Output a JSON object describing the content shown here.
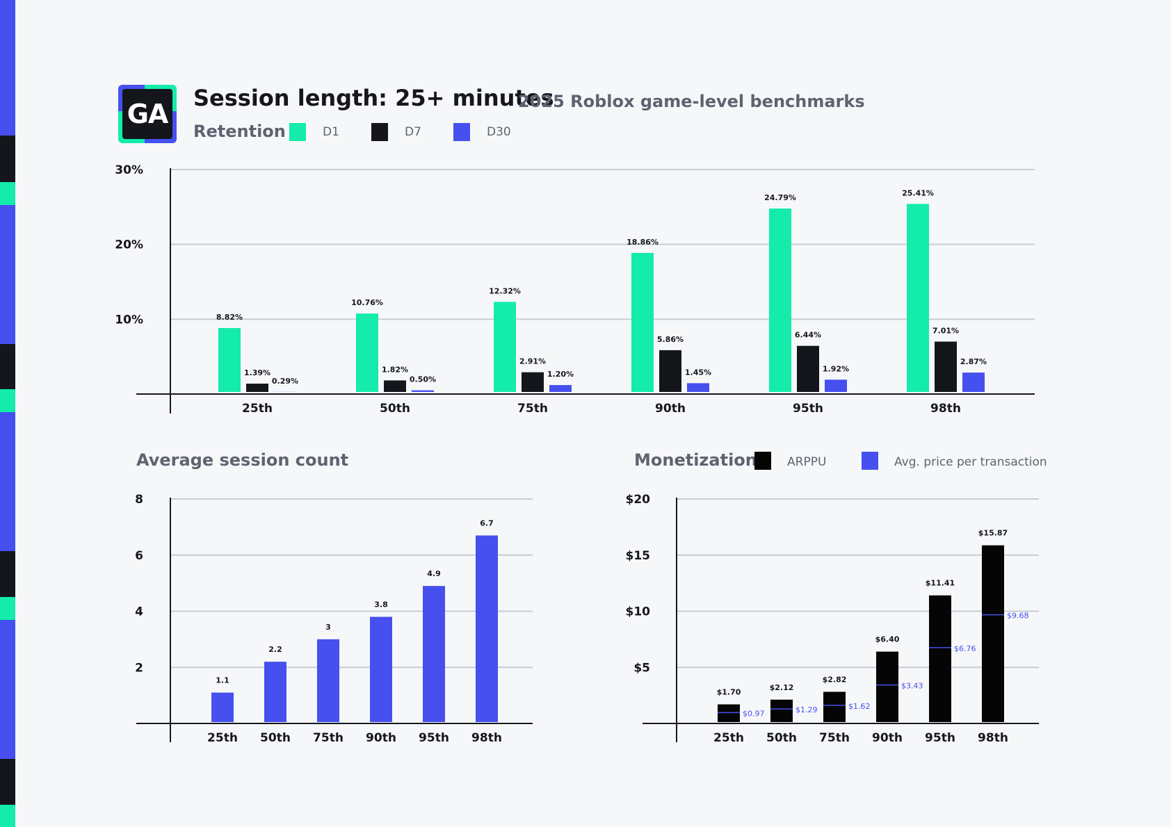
{
  "header": {
    "logo_text": "GA",
    "title": "Session length: 25+ minutes",
    "subtitle": "2025 Roblox game-level benchmarks"
  },
  "retention": {
    "label": "Retention",
    "legend": [
      "D1",
      "D7",
      "D30"
    ]
  },
  "session_count": {
    "label": "Average session count"
  },
  "monetization": {
    "label": "Monetization",
    "legend": [
      "ARPPU",
      "Avg. price per transaction"
    ]
  },
  "colors": {
    "d1": "#13ecab",
    "d7": "#14161b",
    "d30": "#4650ee",
    "arppu": "#050505",
    "price": "#4650ee",
    "grid": "#c9ccd6",
    "background": "#f6f7f9"
  },
  "chart_data": [
    {
      "type": "bar",
      "categories": [
        "25th",
        "50th",
        "75th",
        "90th",
        "95th",
        "98th"
      ],
      "series": [
        {
          "name": "D1",
          "values": [
            8.82,
            10.76,
            12.32,
            18.86,
            24.79,
            25.41
          ],
          "labels": [
            "8.82%",
            "10.76%",
            "12.32%",
            "18.86%",
            "24.79%",
            "25.41%"
          ]
        },
        {
          "name": "D7",
          "values": [
            1.39,
            1.82,
            2.91,
            5.86,
            6.44,
            7.01
          ],
          "labels": [
            "1.39%",
            "1.82%",
            "2.91%",
            "5.86%",
            "6.44%",
            "7.01%"
          ]
        },
        {
          "name": "D30",
          "values": [
            0.29,
            0.5,
            1.2,
            1.45,
            1.92,
            2.87
          ],
          "labels": [
            "0.29%",
            "0.50%",
            "1.20%",
            "1.45%",
            "1.92%",
            "2.87%"
          ]
        }
      ],
      "ylim": [
        0,
        30
      ],
      "yticks": [
        10,
        20,
        30
      ],
      "ytick_labels": [
        "10%",
        "20%",
        "30%"
      ],
      "grid": true,
      "legend": "top-left"
    },
    {
      "type": "bar",
      "categories": [
        "25th",
        "50th",
        "75th",
        "90th",
        "95th",
        "98th"
      ],
      "values": [
        1.1,
        2.2,
        3,
        3.8,
        4.9,
        6.7
      ],
      "labels": [
        "1.1",
        "2.2",
        "3",
        "3.8",
        "4.9",
        "6.7"
      ],
      "ylim": [
        0,
        8
      ],
      "yticks": [
        2,
        4,
        6,
        8
      ],
      "ytick_labels": [
        "2",
        "4",
        "6",
        "8"
      ],
      "grid": true
    },
    {
      "type": "bar",
      "categories": [
        "25th",
        "50th",
        "75th",
        "90th",
        "95th",
        "98th"
      ],
      "series": [
        {
          "name": "ARPPU",
          "values": [
            1.7,
            2.12,
            2.82,
            6.4,
            11.41,
            15.87
          ],
          "labels": [
            "$1.70",
            "$2.12",
            "$2.82",
            "$6.40",
            "$11.41",
            "$15.87"
          ]
        },
        {
          "name": "Avg. price per transaction",
          "values": [
            0.97,
            1.29,
            1.62,
            3.43,
            6.76,
            9.68
          ],
          "labels": [
            "$0.97",
            "$1.29",
            "$1.62",
            "$3.43",
            "$6.76",
            "$9.68"
          ]
        }
      ],
      "ylim": [
        0,
        20
      ],
      "yticks": [
        5,
        10,
        15,
        20
      ],
      "ytick_labels": [
        "$5",
        "$10",
        "$15",
        "$20"
      ],
      "grid": true,
      "legend": "top-right"
    }
  ]
}
